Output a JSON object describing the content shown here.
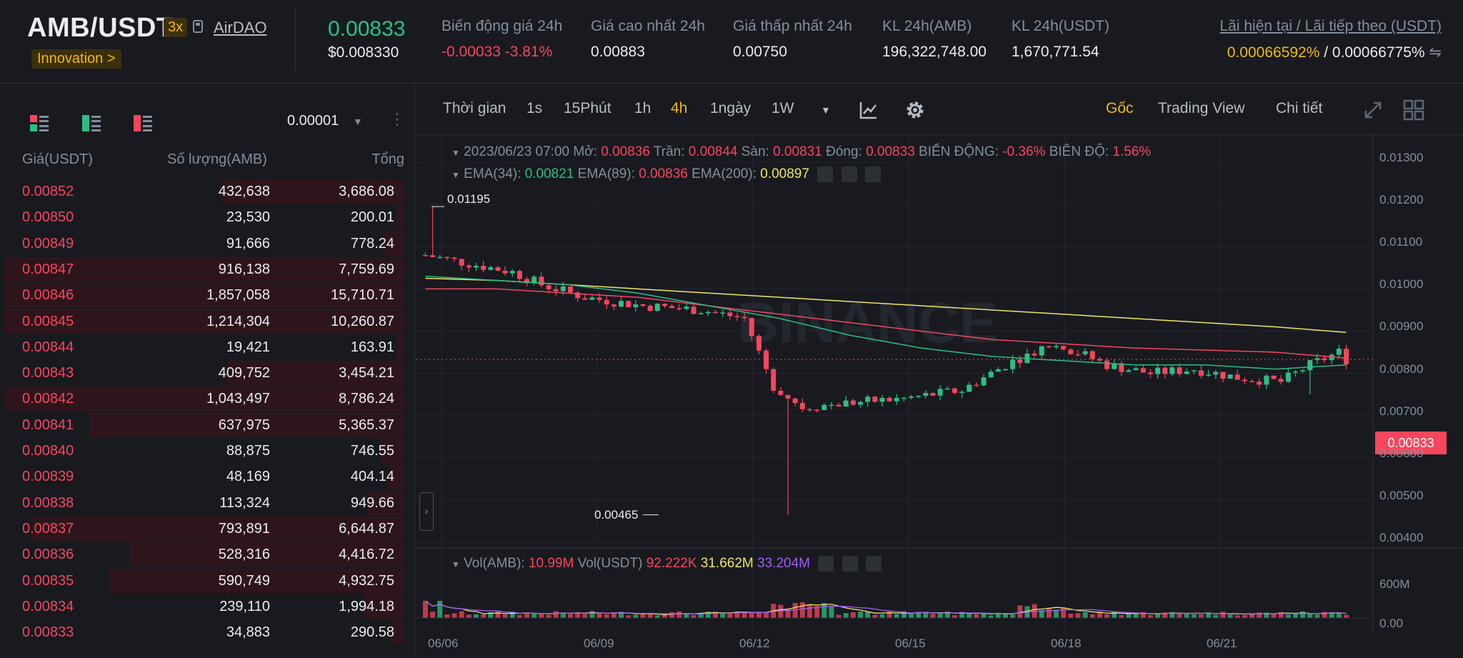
{
  "header": {
    "pair": "AMB/USDT",
    "leverage": "3x",
    "project": "AirDAO",
    "tag": "Innovation >",
    "last_price": "0.00833",
    "last_price_usd": "$0.008330",
    "stats": [
      {
        "label": "Biến động giá 24h",
        "value": "-0.00033 -3.81%"
      },
      {
        "label": "Giá cao nhất 24h",
        "value": "0.00883"
      },
      {
        "label": "Giá thấp nhất 24h",
        "value": "0.00750"
      },
      {
        "label": "KL 24h(AMB)",
        "value": "196,322,748.00"
      },
      {
        "label": "KL 24h(USDT)",
        "value": "1,670,771.54"
      }
    ],
    "funding_label": "Lãi hiện tại / Lãi tiếp theo (USDT)",
    "funding_current": "0.00066592%",
    "funding_sep": " / ",
    "funding_next": "0.00066775%",
    "funding_icon": "⇋"
  },
  "orderbook": {
    "tick_size": "0.00001",
    "dropdown_icon": "▼",
    "more_icon": "⋮",
    "headers": {
      "price": "Giá(USDT)",
      "qty": "Số lượng(AMB)",
      "total": "Tổng"
    },
    "asks": [
      {
        "price": "0.00852",
        "qty": "432,638",
        "total": "3,686.08",
        "depth": 0.45
      },
      {
        "price": "0.00850",
        "qty": "23,530",
        "total": "200.01",
        "depth": 0.02
      },
      {
        "price": "0.00849",
        "qty": "91,666",
        "total": "778.24",
        "depth": 0.05
      },
      {
        "price": "0.00847",
        "qty": "916,138",
        "total": "7,759.69",
        "depth": 0.99
      },
      {
        "price": "0.00846",
        "qty": "1,857,058",
        "total": "15,710.71",
        "depth": 0.99
      },
      {
        "price": "0.00845",
        "qty": "1,214,304",
        "total": "10,260.87",
        "depth": 0.99
      },
      {
        "price": "0.00844",
        "qty": "19,421",
        "total": "163.91",
        "depth": 0.02
      },
      {
        "price": "0.00843",
        "qty": "409,752",
        "total": "3,454.21",
        "depth": 0.44
      },
      {
        "price": "0.00842",
        "qty": "1,043,497",
        "total": "8,786.24",
        "depth": 0.99
      },
      {
        "price": "0.00841",
        "qty": "637,975",
        "total": "5,365.37",
        "depth": 0.78
      },
      {
        "price": "0.00840",
        "qty": "88,875",
        "total": "746.55",
        "depth": 0.06
      },
      {
        "price": "0.00839",
        "qty": "48,169",
        "total": "404.14",
        "depth": 0.04
      },
      {
        "price": "0.00838",
        "qty": "113,324",
        "total": "949.66",
        "depth": 0.09
      },
      {
        "price": "0.00837",
        "qty": "793,891",
        "total": "6,644.87",
        "depth": 0.92
      },
      {
        "price": "0.00836",
        "qty": "528,316",
        "total": "4,416.72",
        "depth": 0.68
      },
      {
        "price": "0.00835",
        "qty": "590,749",
        "total": "4,932.75",
        "depth": 0.73
      },
      {
        "price": "0.00834",
        "qty": "239,110",
        "total": "1,994.18",
        "depth": 0.1
      },
      {
        "price": "0.00833",
        "qty": "34,883",
        "total": "290.58",
        "depth": 0.03
      }
    ]
  },
  "toolbar": {
    "time_label": "Thời gian",
    "intervals": [
      "1s",
      "15Phút",
      "1h",
      "4h",
      "1ngày",
      "1W"
    ],
    "active_interval": "4h",
    "right_tabs": [
      "Gốc",
      "Trading View",
      "Chi tiết"
    ],
    "active_tab": "Gốc"
  },
  "chart": {
    "ohlc_date": "2023/06/23 07:00",
    "open_label": "Mở:",
    "open": "0.00836",
    "high_label": "Trần:",
    "high": "0.00844",
    "low_label": "Sàn:",
    "low": "0.00831",
    "close_label": "Đóng:",
    "close": "0.00833",
    "change_label": "BIẾN ĐỘNG:",
    "change": "-0.36%",
    "amp_label": "BIÊN ĐỘ:",
    "amp": "1.56%",
    "ema34_label": "EMA(34):",
    "ema34": "0.00821",
    "ema89_label": "EMA(89):",
    "ema89": "0.00836",
    "ema200_label": "EMA(200):",
    "ema200": "0.00897",
    "vol_amb_label": "Vol(AMB):",
    "vol_amb": "10.99M",
    "vol_usdt_label": "Vol(USDT)",
    "vol_usdt": "92.222K",
    "vol_ma1": "31.662M",
    "vol_ma2": "33.204M",
    "high_marker": "0.01195",
    "low_marker": "0.00465",
    "current_price_tag": "0.00833",
    "watermark": "BINANCE",
    "price_axis": [
      "0.01300",
      "0.01200",
      "0.01100",
      "0.01000",
      "0.00900",
      "0.00800",
      "0.00700",
      "0.00600",
      "0.00500",
      "0.00400"
    ],
    "vol_axis": [
      "600M",
      "0.00"
    ],
    "date_axis": [
      "06/06",
      "06/09",
      "06/12",
      "06/15",
      "06/18",
      "06/21"
    ],
    "colors": {
      "up": "#2ebd85",
      "down": "#f6465d",
      "ema34": "#2ebd85",
      "ema89": "#f6465d",
      "ema200": "#f0e465"
    },
    "chart_data": {
      "type": "candlestick",
      "interval": "4h",
      "ema34_series": [
        0.0103,
        0.0102,
        0.0101,
        0.0099,
        0.0096,
        0.0093,
        0.0089,
        0.0086,
        0.0084,
        0.0083,
        0.0082,
        0.0082,
        0.0081,
        0.0082
      ],
      "ema89_series": [
        0.01,
        0.01,
        0.0099,
        0.0098,
        0.0096,
        0.0094,
        0.0092,
        0.009,
        0.0088,
        0.0087,
        0.0086,
        0.00855,
        0.0085,
        0.00836
      ],
      "ema200_series": [
        0.01025,
        0.0102,
        0.0101,
        0.01,
        0.0099,
        0.0098,
        0.0097,
        0.0096,
        0.0095,
        0.0094,
        0.0093,
        0.0092,
        0.0091,
        0.00897
      ]
    }
  }
}
